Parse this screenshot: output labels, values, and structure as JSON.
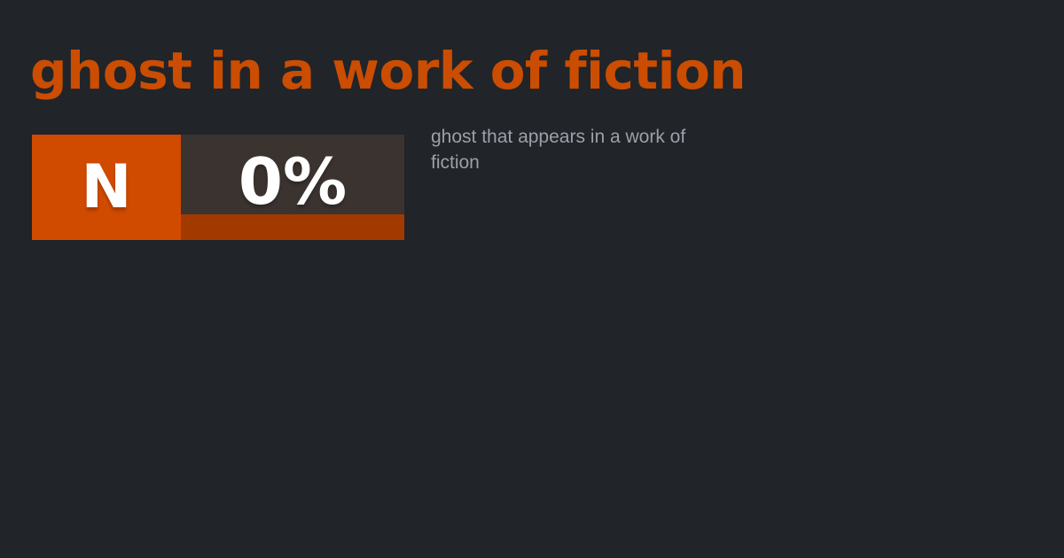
{
  "page": {
    "background_color": "#212429"
  },
  "header": {
    "title": "ghost in a work of fiction",
    "title_color": "#cb4d02"
  },
  "badge": {
    "pos_label": "N",
    "percent_label": "0%",
    "pos_bg_color": "#d04a00",
    "value_bg_color": "#3b3330",
    "bar_color": "#a23a00",
    "text_color": "#ffffff"
  },
  "definition": {
    "text": "ghost that appears in a work of fiction",
    "text_color": "#9aa1a8"
  }
}
